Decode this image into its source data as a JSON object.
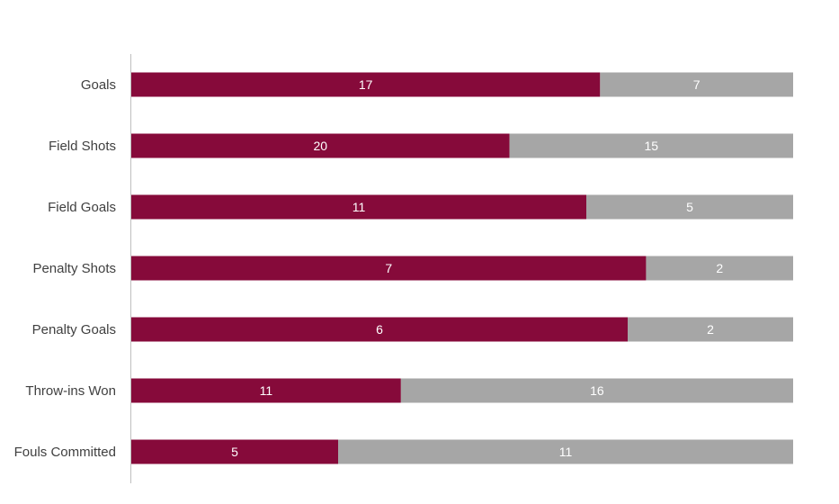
{
  "chart_data": {
    "type": "bar",
    "orientation": "horizontal",
    "stacked": true,
    "normalized": true,
    "categories": [
      "Goals",
      "Field Shots",
      "Field Goals",
      "Penalty Shots",
      "Penalty Goals",
      "Throw-ins Won",
      "Fouls Committed"
    ],
    "series": [
      {
        "values": [
          17,
          20,
          11,
          7,
          6,
          11,
          5
        ],
        "color": "#860A3A"
      },
      {
        "values": [
          7,
          15,
          5,
          2,
          2,
          16,
          11
        ],
        "color": "#A6A6A6"
      }
    ],
    "data_labels": true,
    "grid": false,
    "legend": "none"
  }
}
